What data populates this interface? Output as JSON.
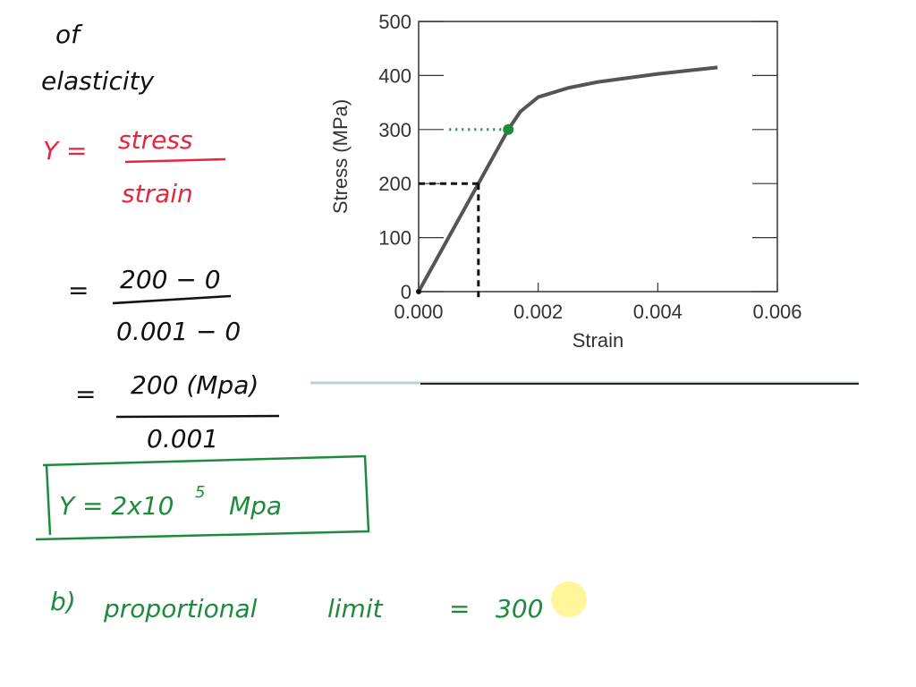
{
  "notes": {
    "line1": "of",
    "line2": "elasticity",
    "eq1": {
      "lhs": "Y =",
      "num": "stress",
      "den": "strain"
    },
    "eq2": {
      "lhs": "=",
      "num": "200 − 0",
      "den": "0.001 − 0"
    },
    "eq3": {
      "lhs": "=",
      "num": "200 (Mpa)",
      "den": "0.001"
    },
    "result": {
      "text": "Y = 2x10",
      "exp": "5",
      "unit": "Mpa"
    },
    "part_b": {
      "label": "b)",
      "text": "proportional",
      "text2": "limit",
      "eq": "=",
      "value": "300"
    }
  },
  "chart_data": {
    "type": "line",
    "xlabel": "Strain",
    "ylabel": "Stress (MPa)",
    "x": [
      0,
      0.001,
      0.0015,
      0.0017,
      0.002,
      0.0025,
      0.003,
      0.004,
      0.005
    ],
    "values": [
      0,
      200,
      300,
      333,
      360,
      377,
      388,
      403,
      415
    ],
    "color": "#555555",
    "xlim": [
      0,
      0.006
    ],
    "ylim": [
      0,
      500
    ],
    "xticks": [
      {
        "value": 0,
        "label": "0.000"
      },
      {
        "value": 0.002,
        "label": "0.002"
      },
      {
        "value": 0.004,
        "label": "0.004"
      },
      {
        "value": 0.006,
        "label": "0.006"
      }
    ],
    "yticks": [
      0,
      100,
      200,
      300,
      400,
      500
    ],
    "grid": false,
    "guides": [
      {
        "x": 0.001,
        "y": 200,
        "color": "#111111",
        "marker": false
      },
      {
        "x": 0.0015,
        "y": 300,
        "color": "#1c8c3c",
        "marker": true
      }
    ]
  }
}
